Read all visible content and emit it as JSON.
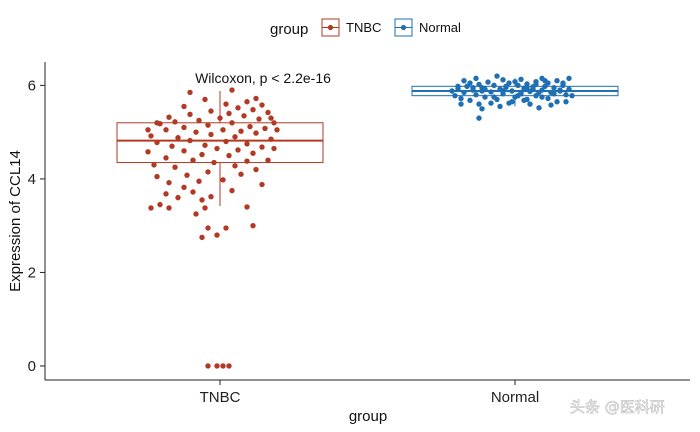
{
  "chart_data": {
    "type": "boxplot",
    "xlabel": "group",
    "ylabel": "Expression of CCL14",
    "ylim": [
      -0.3,
      6.5
    ],
    "yticks": [
      0,
      2,
      4,
      6
    ],
    "categories": [
      "TNBC",
      "Normal"
    ],
    "legend": {
      "title": "group",
      "position": "top",
      "entries": [
        {
          "label": "TNBC",
          "color": "#b23a25"
        },
        {
          "label": "Normal",
          "color": "#1f6fb4"
        }
      ]
    },
    "annotation": "Wilcoxon, p < 2.2e-16",
    "grid": false,
    "series": [
      {
        "name": "TNBC",
        "color": "#b23a25",
        "box": {
          "whisker_low": 3.42,
          "q1": 4.35,
          "median": 4.82,
          "q3": 5.2,
          "whisker_high": 5.88
        },
        "points": [
          {
            "pos": -0.2,
            "y": 0.0
          },
          {
            "pos": -0.05,
            "y": 0.0
          },
          {
            "pos": 0.05,
            "y": 0.0
          },
          {
            "pos": 0.15,
            "y": 0.0
          },
          {
            "pos": -0.3,
            "y": 2.75
          },
          {
            "pos": -0.05,
            "y": 2.8
          },
          {
            "pos": -0.2,
            "y": 2.95
          },
          {
            "pos": 0.1,
            "y": 2.95
          },
          {
            "pos": 0.55,
            "y": 3.0
          },
          {
            "pos": -0.4,
            "y": 3.25
          },
          {
            "pos": -1.15,
            "y": 3.38
          },
          {
            "pos": -0.85,
            "y": 3.38
          },
          {
            "pos": -0.25,
            "y": 3.38
          },
          {
            "pos": 0.45,
            "y": 3.4
          },
          {
            "pos": -1.0,
            "y": 3.45
          },
          {
            "pos": -0.3,
            "y": 3.55
          },
          {
            "pos": -0.7,
            "y": 3.6
          },
          {
            "pos": -0.15,
            "y": 3.62
          },
          {
            "pos": -0.9,
            "y": 3.68
          },
          {
            "pos": -0.45,
            "y": 3.72
          },
          {
            "pos": 0.2,
            "y": 3.75
          },
          {
            "pos": -0.6,
            "y": 3.82
          },
          {
            "pos": 0.7,
            "y": 3.88
          },
          {
            "pos": -0.85,
            "y": 3.92
          },
          {
            "pos": -0.35,
            "y": 3.95
          },
          {
            "pos": 0.05,
            "y": 3.98
          },
          {
            "pos": -1.05,
            "y": 4.05
          },
          {
            "pos": -0.55,
            "y": 4.08
          },
          {
            "pos": 0.35,
            "y": 4.1
          },
          {
            "pos": -0.2,
            "y": 4.15
          },
          {
            "pos": 0.6,
            "y": 4.2
          },
          {
            "pos": -0.75,
            "y": 4.25
          },
          {
            "pos": 0.25,
            "y": 4.28
          },
          {
            "pos": -1.1,
            "y": 4.3
          },
          {
            "pos": -0.1,
            "y": 4.35
          },
          {
            "pos": 0.45,
            "y": 4.38
          },
          {
            "pos": -0.45,
            "y": 4.4
          },
          {
            "pos": 0.8,
            "y": 4.4
          },
          {
            "pos": -0.9,
            "y": 4.45
          },
          {
            "pos": 0.15,
            "y": 4.5
          },
          {
            "pos": -0.3,
            "y": 4.52
          },
          {
            "pos": 0.55,
            "y": 4.55
          },
          {
            "pos": -1.2,
            "y": 4.58
          },
          {
            "pos": -0.6,
            "y": 4.6
          },
          {
            "pos": 0.3,
            "y": 4.62
          },
          {
            "pos": -0.05,
            "y": 4.65
          },
          {
            "pos": 0.7,
            "y": 4.68
          },
          {
            "pos": -0.8,
            "y": 4.7
          },
          {
            "pos": -0.25,
            "y": 4.72
          },
          {
            "pos": 0.45,
            "y": 4.75
          },
          {
            "pos": -1.05,
            "y": 4.78
          },
          {
            "pos": 0.1,
            "y": 4.8
          },
          {
            "pos": -0.5,
            "y": 4.82
          },
          {
            "pos": 0.85,
            "y": 4.85
          },
          {
            "pos": -0.7,
            "y": 4.88
          },
          {
            "pos": 0.25,
            "y": 4.9
          },
          {
            "pos": -1.15,
            "y": 4.92
          },
          {
            "pos": -0.15,
            "y": 4.95
          },
          {
            "pos": 0.6,
            "y": 4.98
          },
          {
            "pos": -0.4,
            "y": 5.0
          },
          {
            "pos": 0.35,
            "y": 5.02
          },
          {
            "pos": -0.9,
            "y": 5.05
          },
          {
            "pos": 0.05,
            "y": 5.05
          },
          {
            "pos": 0.75,
            "y": 5.08
          },
          {
            "pos": -0.6,
            "y": 5.1
          },
          {
            "pos": 0.5,
            "y": 5.12
          },
          {
            "pos": -0.2,
            "y": 5.15
          },
          {
            "pos": -1.0,
            "y": 5.18
          },
          {
            "pos": 0.2,
            "y": 5.2
          },
          {
            "pos": 0.9,
            "y": 5.2
          },
          {
            "pos": -0.75,
            "y": 5.22
          },
          {
            "pos": -0.35,
            "y": 5.25
          },
          {
            "pos": 0.65,
            "y": 5.28
          },
          {
            "pos": 0.0,
            "y": 5.3
          },
          {
            "pos": -0.85,
            "y": 5.32
          },
          {
            "pos": 0.4,
            "y": 5.35
          },
          {
            "pos": -0.5,
            "y": 5.38
          },
          {
            "pos": 0.15,
            "y": 5.4
          },
          {
            "pos": 0.8,
            "y": 5.42
          },
          {
            "pos": -0.15,
            "y": 5.45
          },
          {
            "pos": 0.55,
            "y": 5.48
          },
          {
            "pos": 0.3,
            "y": 5.52
          },
          {
            "pos": -0.6,
            "y": 5.55
          },
          {
            "pos": 0.7,
            "y": 5.58
          },
          {
            "pos": 0.1,
            "y": 5.6
          },
          {
            "pos": 0.45,
            "y": 5.65
          },
          {
            "pos": -0.25,
            "y": 5.7
          },
          {
            "pos": 0.6,
            "y": 5.72
          },
          {
            "pos": -0.5,
            "y": 5.85
          },
          {
            "pos": 0.2,
            "y": 5.9
          },
          {
            "pos": -1.05,
            "y": 5.2
          },
          {
            "pos": 0.95,
            "y": 5.05
          },
          {
            "pos": 0.9,
            "y": 4.65
          },
          {
            "pos": -1.2,
            "y": 5.05
          },
          {
            "pos": 0.85,
            "y": 5.3
          }
        ]
      },
      {
        "name": "Normal",
        "color": "#1f6fb4",
        "box": {
          "whisker_low": 5.55,
          "q1": 5.78,
          "median": 5.88,
          "q3": 5.98,
          "whisker_high": 6.15
        },
        "points": [
          {
            "pos": -0.6,
            "y": 5.3
          },
          {
            "pos": -0.55,
            "y": 5.5
          },
          {
            "pos": 0.4,
            "y": 5.52
          },
          {
            "pos": -0.9,
            "y": 5.6
          },
          {
            "pos": -0.1,
            "y": 5.62
          },
          {
            "pos": 0.7,
            "y": 5.65
          },
          {
            "pos": -0.75,
            "y": 5.68
          },
          {
            "pos": -0.3,
            "y": 5.7
          },
          {
            "pos": 0.2,
            "y": 5.7
          },
          {
            "pos": 0.55,
            "y": 5.72
          },
          {
            "pos": -0.5,
            "y": 5.75
          },
          {
            "pos": 0.0,
            "y": 5.75
          },
          {
            "pos": -1.0,
            "y": 5.78
          },
          {
            "pos": 0.35,
            "y": 5.78
          },
          {
            "pos": 0.85,
            "y": 5.8
          },
          {
            "pos": -0.65,
            "y": 5.8
          },
          {
            "pos": -0.2,
            "y": 5.82
          },
          {
            "pos": 0.1,
            "y": 5.82
          },
          {
            "pos": 0.6,
            "y": 5.85
          },
          {
            "pos": -0.85,
            "y": 5.85
          },
          {
            "pos": -0.4,
            "y": 5.86
          },
          {
            "pos": 0.25,
            "y": 5.87
          },
          {
            "pos": 0.75,
            "y": 5.88
          },
          {
            "pos": -0.05,
            "y": 5.88
          },
          {
            "pos": -0.7,
            "y": 5.9
          },
          {
            "pos": 0.45,
            "y": 5.9
          },
          {
            "pos": -0.25,
            "y": 5.92
          },
          {
            "pos": 0.9,
            "y": 5.92
          },
          {
            "pos": -0.95,
            "y": 5.93
          },
          {
            "pos": 0.15,
            "y": 5.94
          },
          {
            "pos": -0.55,
            "y": 5.95
          },
          {
            "pos": 0.65,
            "y": 5.95
          },
          {
            "pos": -0.15,
            "y": 5.96
          },
          {
            "pos": 0.3,
            "y": 5.97
          },
          {
            "pos": -0.8,
            "y": 5.98
          },
          {
            "pos": 0.5,
            "y": 5.98
          },
          {
            "pos": -0.35,
            "y": 6.0
          },
          {
            "pos": 0.05,
            "y": 6.0
          },
          {
            "pos": 0.8,
            "y": 6.0
          },
          {
            "pos": -0.6,
            "y": 6.02
          },
          {
            "pos": 0.2,
            "y": 6.03
          },
          {
            "pos": -0.1,
            "y": 6.05
          },
          {
            "pos": 0.55,
            "y": 6.05
          },
          {
            "pos": -0.45,
            "y": 6.07
          },
          {
            "pos": 0.35,
            "y": 6.08
          },
          {
            "pos": -0.85,
            "y": 6.1
          },
          {
            "pos": 0.7,
            "y": 6.1
          },
          {
            "pos": -0.2,
            "y": 6.12
          },
          {
            "pos": 0.1,
            "y": 6.13
          },
          {
            "pos": 0.45,
            "y": 6.15
          },
          {
            "pos": -0.65,
            "y": 6.15
          },
          {
            "pos": -0.4,
            "y": 5.62
          },
          {
            "pos": 0.25,
            "y": 5.6
          },
          {
            "pos": -0.9,
            "y": 5.72
          },
          {
            "pos": 0.95,
            "y": 5.78
          },
          {
            "pos": -1.05,
            "y": 5.88
          },
          {
            "pos": 0.6,
            "y": 5.58
          },
          {
            "pos": -0.25,
            "y": 5.55
          },
          {
            "pos": 0.15,
            "y": 5.68
          },
          {
            "pos": 0.8,
            "y": 6.05
          },
          {
            "pos": -0.5,
            "y": 5.92
          },
          {
            "pos": -0.3,
            "y": 6.2
          },
          {
            "pos": 0.4,
            "y": 5.85
          },
          {
            "pos": -0.75,
            "y": 6.05
          },
          {
            "pos": 0.05,
            "y": 5.78
          },
          {
            "pos": -0.15,
            "y": 5.98
          },
          {
            "pos": 0.3,
            "y": 5.92
          },
          {
            "pos": 0.65,
            "y": 5.82
          },
          {
            "pos": -0.95,
            "y": 5.98
          },
          {
            "pos": 0.85,
            "y": 5.65
          },
          {
            "pos": 0.5,
            "y": 6.1
          },
          {
            "pos": -0.55,
            "y": 5.88
          },
          {
            "pos": 0.0,
            "y": 6.08
          },
          {
            "pos": 0.2,
            "y": 5.95
          },
          {
            "pos": -0.35,
            "y": 5.75
          },
          {
            "pos": 0.75,
            "y": 5.9
          },
          {
            "pos": 0.9,
            "y": 6.15
          },
          {
            "pos": -0.7,
            "y": 5.95
          },
          {
            "pos": 0.1,
            "y": 5.85
          },
          {
            "pos": -0.05,
            "y": 5.65
          },
          {
            "pos": 0.45,
            "y": 5.75
          },
          {
            "pos": -0.6,
            "y": 5.6
          },
          {
            "pos": -0.2,
            "y": 5.88
          },
          {
            "pos": 0.35,
            "y": 6.02
          }
        ]
      }
    ]
  },
  "watermark": "头条 @医科研"
}
